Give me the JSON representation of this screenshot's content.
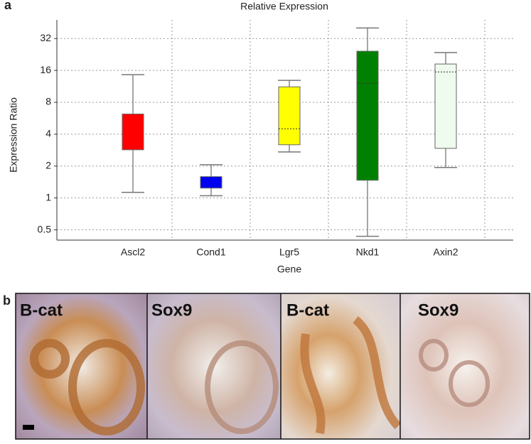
{
  "chart_data": {
    "type": "box",
    "title": "Relative Expression",
    "ylabel": "Expression Ratio",
    "xlabel": "Gene",
    "categories": [
      "Ascl2",
      "Cond1",
      "Lgr5",
      "Nkd1",
      "Axin2"
    ],
    "boxes": [
      {
        "whisker_low": 1.13,
        "q1": 2.85,
        "median": null,
        "q3": 6.2,
        "whisker_high": 14.6,
        "color": "#ff0000"
      },
      {
        "whisker_low": 1.05,
        "q1": 1.24,
        "median": null,
        "q3": 1.59,
        "whisker_high": 2.06,
        "color": "#0000ee"
      },
      {
        "whisker_low": 2.72,
        "q1": 3.18,
        "median": 4.5,
        "q3": 11.2,
        "whisker_high": 12.9,
        "color": "#ffff00"
      },
      {
        "whisker_low": 0.435,
        "q1": 1.47,
        "median": 12.1,
        "q3": 24.3,
        "whisker_high": 40.3,
        "color": "#008000"
      },
      {
        "whisker_low": 1.94,
        "q1": 2.94,
        "median": 15.5,
        "q3": 18.4,
        "whisker_high": 23.6,
        "color": "#eefbee"
      }
    ],
    "ylim": [
      0.4,
      48
    ],
    "yticks": [
      0.5,
      1,
      2,
      4,
      8,
      16,
      32
    ],
    "ylog": true,
    "grid": true
  },
  "figure": {
    "panel_a": "a",
    "panel_b": "b",
    "images": [
      "B-cat",
      "Sox9",
      "B-cat",
      "Sox9"
    ]
  }
}
